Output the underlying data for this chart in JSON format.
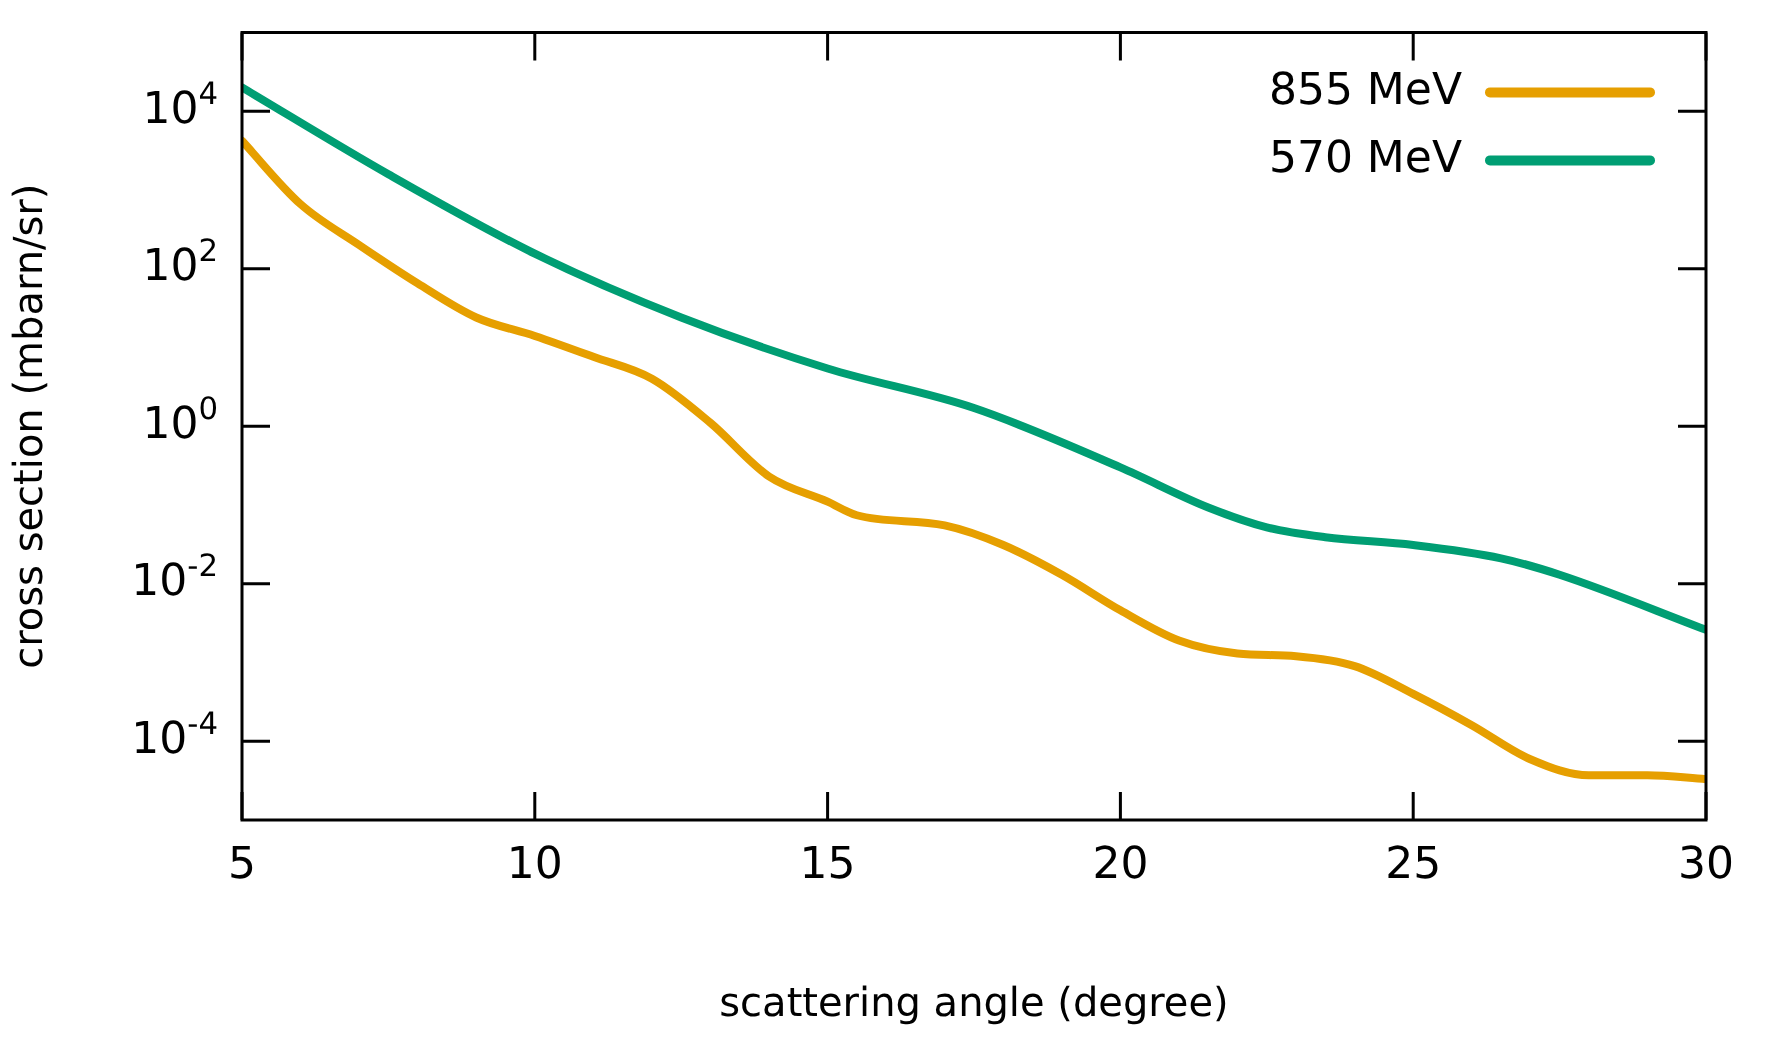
{
  "chart_data": {
    "type": "line",
    "xlabel": "scattering angle (degree)",
    "ylabel": "cross section (mbarn/sr)",
    "log": "y",
    "grid": false,
    "legend": "top right",
    "marker": "none",
    "line_style": "solid",
    "xlim": [
      5,
      30
    ],
    "xticks": [
      5,
      10,
      15,
      20,
      25,
      30
    ],
    "ylim": [
      1e-05,
      100000
    ],
    "yticks": [
      {
        "value": 0.0001,
        "label": "10$^{-4}$"
      },
      {
        "value": 0.01,
        "label": "10$^{-2}$"
      },
      {
        "value": 1,
        "label": "10$^{0}$"
      },
      {
        "value": 100,
        "label": "10$^{2}$"
      },
      {
        "value": 10000,
        "label": "10$^{4}$"
      }
    ],
    "series": [
      {
        "name": "855 MeV",
        "color": "#e69f00",
        "x": [
          5,
          6,
          7,
          8,
          9,
          10,
          11,
          12,
          13,
          14,
          15,
          15.5,
          17,
          18,
          19,
          20,
          21,
          22,
          23,
          24,
          25,
          26,
          27,
          28,
          29,
          30
        ],
        "values": [
          4200,
          660,
          200,
          65,
          24,
          14,
          7.6,
          4,
          1.1,
          0.23,
          0.11,
          0.074,
          0.055,
          0.031,
          0.013,
          0.0046,
          0.0019,
          0.0013,
          0.0012,
          0.0009,
          0.0004,
          0.00016,
          5.9e-05,
          3.7e-05,
          3.7e-05,
          3.3e-05
        ]
      },
      {
        "name": "570 MeV",
        "color": "#009e73",
        "x": [
          5,
          7.5,
          10,
          12.5,
          15,
          17.5,
          20,
          21.5,
          22.5,
          23.5,
          25,
          26.5,
          27.5,
          30
        ],
        "values": [
          20000,
          1580,
          155,
          24,
          5.4,
          1.7,
          0.3,
          0.093,
          0.052,
          0.039,
          0.031,
          0.021,
          0.013,
          0.0026
        ]
      }
    ]
  }
}
